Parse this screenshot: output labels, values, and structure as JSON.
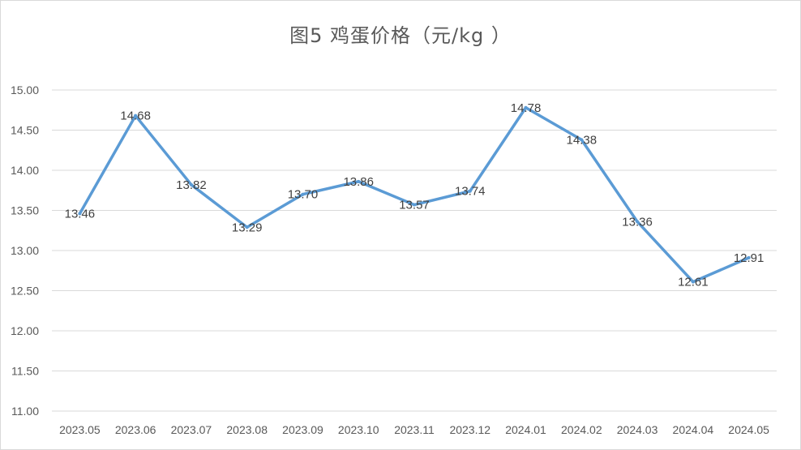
{
  "chart_data": {
    "type": "line",
    "title": "图5  鸡蛋价格（元/kg ）",
    "categories": [
      "2023.05",
      "2023.06",
      "2023.07",
      "2023.08",
      "2023.09",
      "2023.10",
      "2023.11",
      "2023.12",
      "2024.01",
      "2024.02",
      "2024.03",
      "2024.04",
      "2024.05"
    ],
    "values": [
      13.46,
      14.68,
      13.82,
      13.29,
      13.7,
      13.86,
      13.57,
      13.74,
      14.78,
      14.38,
      13.36,
      12.61,
      12.91
    ],
    "data_labels": [
      "13.46",
      "14.68",
      "13.82",
      "13.29",
      "13.70",
      "13.86",
      "13.57",
      "13.74",
      "14.78",
      "14.38",
      "13.36",
      "12.61",
      "12.91"
    ],
    "ylim": [
      11.0,
      15.0
    ],
    "yticks": [
      "11.00",
      "11.50",
      "12.00",
      "12.50",
      "13.00",
      "13.50",
      "14.00",
      "14.50",
      "15.00"
    ],
    "grid": true,
    "legend": "none",
    "line_color": "#5b9bd5",
    "grid_color": "#d9d9d9"
  }
}
